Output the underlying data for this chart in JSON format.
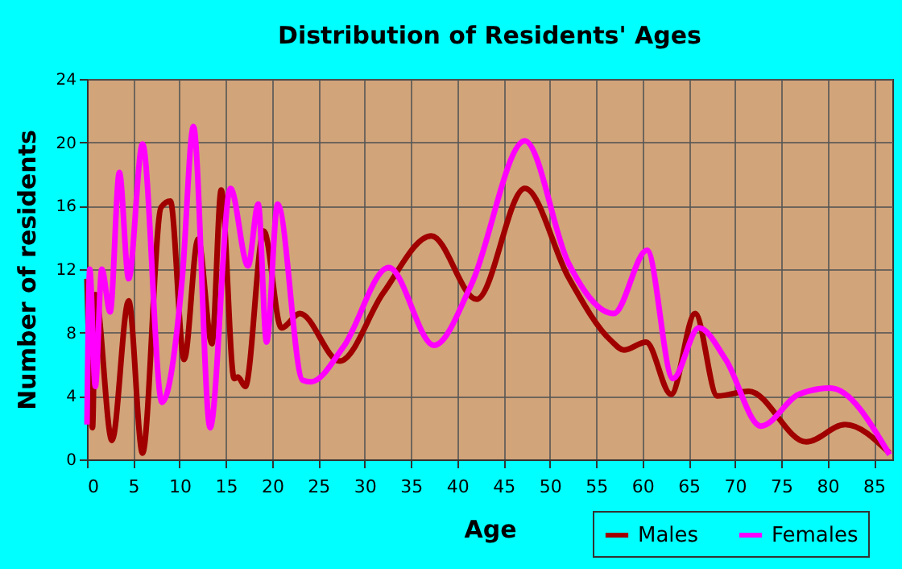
{
  "chart_data": {
    "type": "line",
    "title": "Distribution of Residents' Ages",
    "xlabel": "Age",
    "ylabel": "Number of residents",
    "xlim": [
      0,
      87
    ],
    "xticks": [
      0,
      5,
      10,
      15,
      20,
      25,
      30,
      35,
      40,
      45,
      50,
      55,
      60,
      65,
      70,
      75,
      80,
      85
    ],
    "ylim": [
      0,
      24
    ],
    "yticks": [
      0,
      4,
      8,
      12,
      16,
      20,
      24
    ],
    "grid": true,
    "legend": "bottom right",
    "line_style": "solid",
    "marker": "none",
    "series": [
      {
        "name": "Males",
        "color": "#a00000",
        "x": [
          0,
          0.6,
          0.9,
          2.7,
          4.5,
          6.0,
          8.0,
          9.0,
          10.5,
          12.0,
          13.5,
          14.5,
          15.9,
          16.3,
          17.1,
          19.1,
          21.0,
          23.0,
          27.3,
          32.0,
          37.2,
          42.1,
          47.3,
          52.0,
          56.6,
          58.0,
          60.4,
          63.1,
          65.7,
          68.1,
          71.5,
          77.7,
          81.9,
          86.7
        ],
        "values": [
          11.4,
          2.0,
          10.4,
          1.2,
          10.0,
          0.4,
          15.9,
          16.3,
          6.3,
          13.9,
          7.3,
          17.0,
          5.1,
          5.2,
          4.6,
          14.4,
          8.3,
          9.2,
          6.2,
          10.5,
          14.1,
          10.1,
          17.1,
          11.5,
          7.5,
          6.9,
          7.4,
          4.1,
          9.2,
          4.0,
          4.3,
          1.1,
          2.2,
          0.4
        ]
      },
      {
        "name": "Females",
        "color": "#ff00ff",
        "x": [
          0,
          0.3,
          0.9,
          1.6,
          2.5,
          3.5,
          4.5,
          6.0,
          8.1,
          10.3,
          11.5,
          13.3,
          15.5,
          17.4,
          18.5,
          19.4,
          20.6,
          23.3,
          24.2,
          27.7,
          32.6,
          37.5,
          41.5,
          47.3,
          52.0,
          56.9,
          60.5,
          63.3,
          66.1,
          69.0,
          72.8,
          76.9,
          80.3,
          86.7
        ],
        "values": [
          2.2,
          12.0,
          4.6,
          12.0,
          9.3,
          18.1,
          11.4,
          19.9,
          3.6,
          11.5,
          21.0,
          2.0,
          17.1,
          12.2,
          16.1,
          7.4,
          16.1,
          5.0,
          4.9,
          7.1,
          12.1,
          7.2,
          11.0,
          20.1,
          12.4,
          9.2,
          13.2,
          5.1,
          8.3,
          6.3,
          2.1,
          4.1,
          4.5,
          0.3
        ]
      }
    ]
  }
}
